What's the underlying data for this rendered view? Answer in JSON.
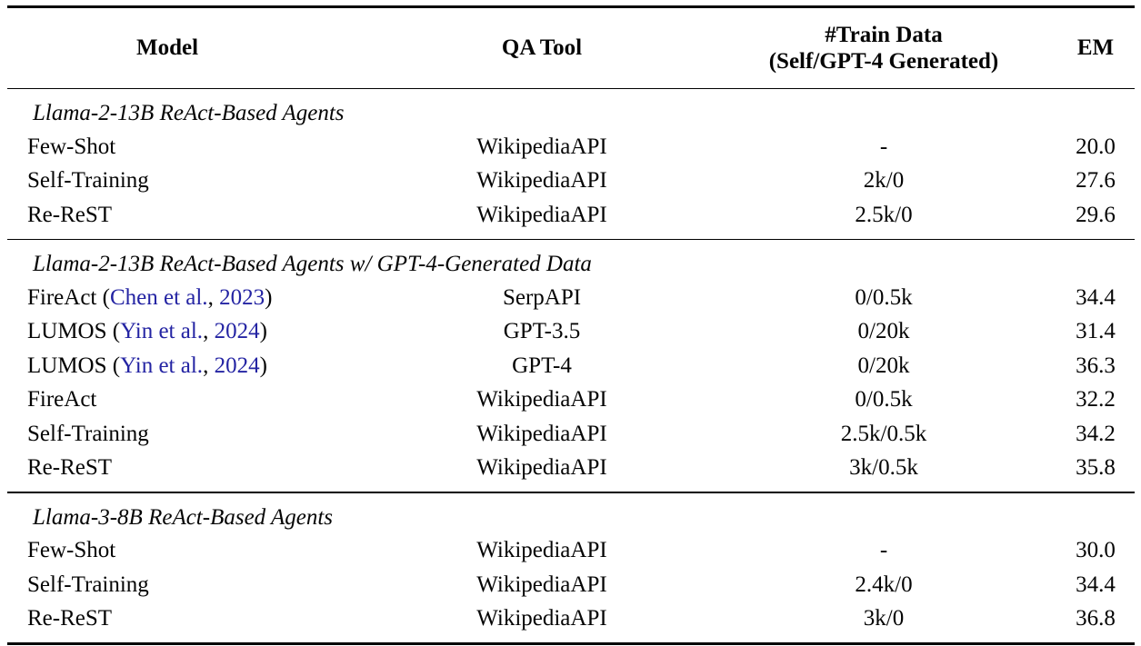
{
  "page": {
    "background_color": "#ffffff",
    "text_color": "#050505",
    "citation_color": "#2424a3"
  },
  "table": {
    "columns": [
      {
        "key": "model",
        "label": "Model"
      },
      {
        "key": "qa_tool",
        "label": "QA Tool"
      },
      {
        "key": "train_data",
        "label": "#Train Data",
        "label_line2": "(Self/GPT-4 Generated)"
      },
      {
        "key": "em",
        "label": "EM"
      }
    ],
    "sections": [
      {
        "title": "Llama-2-13B ReAct-Based Agents",
        "rows": [
          {
            "model": [
              {
                "text": "Few-Shot"
              }
            ],
            "qa_tool": "WikipediaAPI",
            "train_data": "-",
            "em": "20.0"
          },
          {
            "model": [
              {
                "text": "Self-Training"
              }
            ],
            "qa_tool": "WikipediaAPI",
            "train_data": "2k/0",
            "em": "27.6"
          },
          {
            "model": [
              {
                "text": "Re-ReST"
              }
            ],
            "qa_tool": "WikipediaAPI",
            "train_data": "2.5k/0",
            "em": "29.6"
          }
        ]
      },
      {
        "title": "Llama-2-13B ReAct-Based Agents w/ GPT-4-Generated Data",
        "rows": [
          {
            "model": [
              {
                "text": "FireAct ("
              },
              {
                "text": "Chen et al.",
                "link": true
              },
              {
                "text": ","
              },
              {
                "text": " "
              },
              {
                "text": "2023",
                "link": true
              },
              {
                "text": ")"
              }
            ],
            "qa_tool": "SerpAPI",
            "train_data": "0/0.5k",
            "em": "34.4"
          },
          {
            "model": [
              {
                "text": "LUMOS ("
              },
              {
                "text": "Yin et al.",
                "link": true
              },
              {
                "text": ","
              },
              {
                "text": " "
              },
              {
                "text": "2024",
                "link": true
              },
              {
                "text": ")"
              }
            ],
            "qa_tool": "GPT-3.5",
            "train_data": "0/20k",
            "em": "31.4"
          },
          {
            "model": [
              {
                "text": "LUMOS ("
              },
              {
                "text": "Yin et al.",
                "link": true
              },
              {
                "text": ","
              },
              {
                "text": " "
              },
              {
                "text": "2024",
                "link": true
              },
              {
                "text": ")"
              }
            ],
            "qa_tool": "GPT-4",
            "train_data": "0/20k",
            "em": "36.3"
          },
          {
            "model": [
              {
                "text": "FireAct"
              }
            ],
            "qa_tool": "WikipediaAPI",
            "train_data": "0/0.5k",
            "em": "32.2"
          },
          {
            "model": [
              {
                "text": "Self-Training"
              }
            ],
            "qa_tool": "WikipediaAPI",
            "train_data": "2.5k/0.5k",
            "em": "34.2"
          },
          {
            "model": [
              {
                "text": "Re-ReST"
              }
            ],
            "qa_tool": "WikipediaAPI",
            "train_data": "3k/0.5k",
            "em": "35.8"
          }
        ]
      },
      {
        "title": "Llama-3-8B ReAct-Based Agents",
        "rows": [
          {
            "model": [
              {
                "text": "Few-Shot"
              }
            ],
            "qa_tool": "WikipediaAPI",
            "train_data": "-",
            "em": "30.0"
          },
          {
            "model": [
              {
                "text": "Self-Training"
              }
            ],
            "qa_tool": "WikipediaAPI",
            "train_data": "2.4k/0",
            "em": "34.4"
          },
          {
            "model": [
              {
                "text": "Re-ReST"
              }
            ],
            "qa_tool": "WikipediaAPI",
            "train_data": "3k/0",
            "em": "36.8"
          }
        ]
      }
    ]
  }
}
